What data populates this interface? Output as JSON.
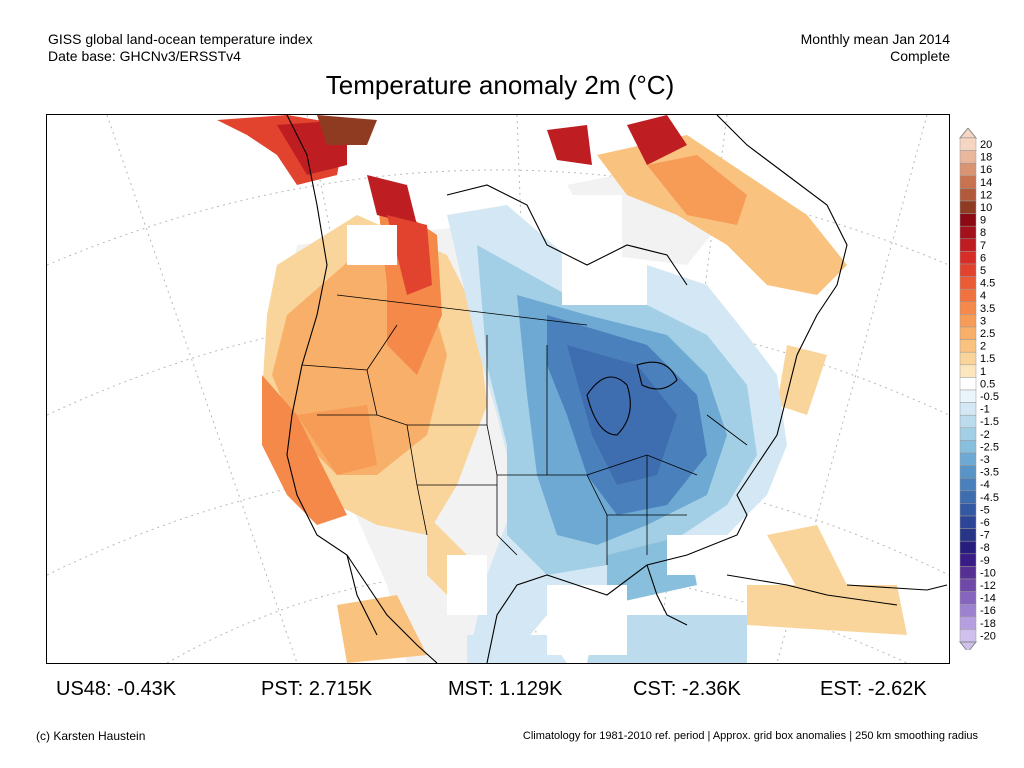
{
  "header": {
    "left_line1": "GISS global land-ocean temperature index",
    "left_line2": "Date base: GHCNv3/ERSSTv4",
    "right_line1": "Monthly mean Jan 2014",
    "right_line2": "Complete"
  },
  "title": "Temperature anomaly 2m (°C)",
  "legend": {
    "labels": [
      "20",
      "18",
      "16",
      "14",
      "12",
      "10",
      "9",
      "8",
      "7",
      "6",
      "5",
      "4.5",
      "4",
      "3.5",
      "3",
      "2.5",
      "2",
      "1.5",
      "1",
      "0.5",
      "-0.5",
      "-1",
      "-1.5",
      "-2",
      "-2.5",
      "-3",
      "-3.5",
      "-4",
      "-4.5",
      "-5",
      "-6",
      "-7",
      "-8",
      "-9",
      "-10",
      "-12",
      "-14",
      "-16",
      "-18",
      "-20"
    ],
    "colors": [
      "#f6d5c3",
      "#e9b79b",
      "#d99473",
      "#c8724f",
      "#b25a3c",
      "#8f3b22",
      "#8b0a14",
      "#a3121c",
      "#be1d22",
      "#d62d27",
      "#e2432e",
      "#ea5c36",
      "#f0733f",
      "#f4894a",
      "#f69c57",
      "#f8af69",
      "#f9c27f",
      "#fad59b",
      "#fbe6bd",
      "#ffffff",
      "#eaf4fb",
      "#d3e8f4",
      "#bcdcee",
      "#a3cfe6",
      "#88bfdd",
      "#6da9d2",
      "#5894c6",
      "#4a80bb",
      "#3e6db0",
      "#3459a3",
      "#2d4596",
      "#283586",
      "#261d7c",
      "#3a1c86",
      "#563093",
      "#6f49a8",
      "#8565bd",
      "#9d82d0",
      "#b69fe0",
      "#d0c0ee"
    ]
  },
  "stats": [
    {
      "label": "US48:",
      "value": "-0.43K"
    },
    {
      "label": "PST:",
      "value": "2.715K"
    },
    {
      "label": "MST:",
      "value": "1.129K"
    },
    {
      "label": "CST:",
      "value": "-2.36K"
    },
    {
      "label": "EST:",
      "value": "-2.62K"
    }
  ],
  "footer": {
    "left": "(c) Karsten Haustein",
    "right": "Climatology for 1981-2010 ref. period | Approx. grid box anomalies | 250 km smoothing radius"
  }
}
